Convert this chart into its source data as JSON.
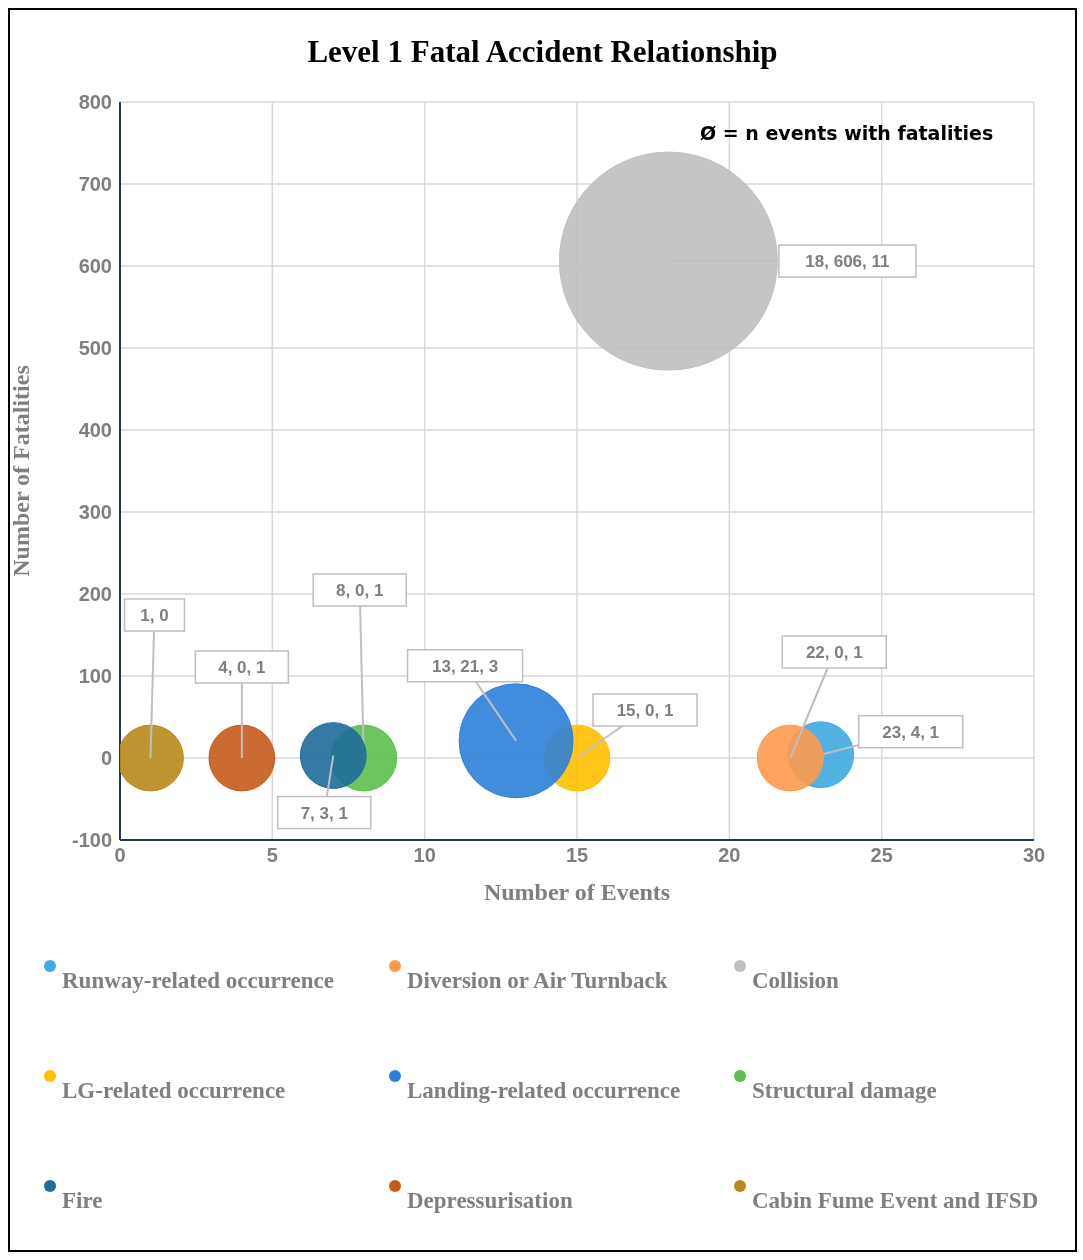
{
  "chart_data": {
    "type": "bubble",
    "title": "Level 1 Fatal Accident Relationship",
    "xlabel": "Number of Events",
    "ylabel": "Number of Fatalities",
    "annotations": [
      "Ø = n events with fatalities"
    ],
    "xlim": [
      0,
      30
    ],
    "xticks": [
      0,
      5,
      10,
      15,
      20,
      25,
      30
    ],
    "ylim": [
      -100,
      800
    ],
    "yticks": [
      -100,
      0,
      100,
      200,
      300,
      400,
      500,
      600,
      700,
      800
    ],
    "grid": true,
    "legend": "bottom",
    "marker": "circle",
    "series": [
      {
        "name": "Runway-related occurrence",
        "color": "#3fa9e0",
        "x": [
          23
        ],
        "values": [
          4
        ],
        "sizes": [
          0.091
        ],
        "value_labels": [
          "23, 4, 1"
        ]
      },
      {
        "name": "Diversion or Air Turnback",
        "color": "#ff9a4d",
        "x": [
          22
        ],
        "values": [
          0
        ],
        "sizes": [
          0.091
        ],
        "value_labels": [
          "22, 0, 1"
        ]
      },
      {
        "name": "Collision",
        "color": "#bfbfbf",
        "x": [
          18
        ],
        "values": [
          606
        ],
        "sizes": [
          1
        ],
        "value_labels": [
          "18, 606, 11"
        ]
      },
      {
        "name": "LG-related occurrence",
        "color": "#ffc000",
        "x": [
          15
        ],
        "values": [
          0
        ],
        "sizes": [
          0.091
        ],
        "value_labels": [
          "15, 0, 1"
        ]
      },
      {
        "name": "Landing-related occurrence",
        "color": "#2e7fd9",
        "x": [
          13
        ],
        "values": [
          21
        ],
        "sizes": [
          0.273
        ],
        "value_labels": [
          "13, 21, 3"
        ]
      },
      {
        "name": "Structural damage",
        "color": "#5cbf4e",
        "x": [
          8
        ],
        "values": [
          0
        ],
        "sizes": [
          0.091
        ],
        "value_labels": [
          "8, 0, 1"
        ]
      },
      {
        "name": "Fire",
        "color": "#1f6b9a",
        "x": [
          7
        ],
        "values": [
          3
        ],
        "sizes": [
          0.091
        ],
        "value_labels": [
          "7, 3, 1"
        ]
      },
      {
        "name": "Depressurisation",
        "color": "#c55a1d",
        "x": [
          4
        ],
        "values": [
          0
        ],
        "sizes": [
          0.091
        ],
        "value_labels": [
          "4, 0, 1"
        ]
      },
      {
        "name": "Cabin Fume Event and IFSD",
        "color": "#b8891c",
        "x": [
          1
        ],
        "values": [
          0
        ],
        "sizes": [
          0.091
        ],
        "value_labels": [
          "1, 0"
        ]
      }
    ]
  }
}
